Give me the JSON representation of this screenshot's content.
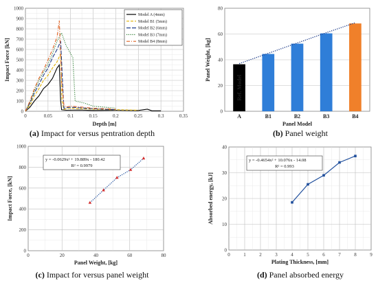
{
  "chart_data": [
    {
      "type": "line",
      "caption_letter": "(a)",
      "caption_text": " Impact for versus pentration depth",
      "xlabel": "Depth [m]",
      "ylabel": "Impact Force [kN]",
      "xlim": [
        0,
        0.35
      ],
      "ylim": [
        0,
        1000
      ],
      "xticks": [
        "0",
        "0.05",
        "0.1",
        "0.15",
        "0.2",
        "0.25",
        "0.3",
        "0.35"
      ],
      "yticks": [
        "0",
        "100",
        "200",
        "300",
        "400",
        "500",
        "600",
        "700",
        "800",
        "900",
        "1000"
      ],
      "grid": true,
      "legend_position": "top-right",
      "series": [
        {
          "name": "Model A (4mm)",
          "color": "#000000",
          "dash": "solid",
          "x": [
            0,
            0.01,
            0.02,
            0.03,
            0.04,
            0.05,
            0.06,
            0.07,
            0.075,
            0.078,
            0.08,
            0.09,
            0.12,
            0.15,
            0.2,
            0.25,
            0.27,
            0.28,
            0.3
          ],
          "y": [
            0,
            40,
            100,
            150,
            220,
            260,
            320,
            420,
            450,
            100,
            15,
            10,
            12,
            8,
            10,
            8,
            20,
            5,
            5
          ]
        },
        {
          "name": "Model B1 (5mm)",
          "color": "#e0b000",
          "dash": "dash",
          "x": [
            0,
            0.01,
            0.02,
            0.03,
            0.04,
            0.05,
            0.06,
            0.07,
            0.078,
            0.081,
            0.085,
            0.1,
            0.15,
            0.2,
            0.25
          ],
          "y": [
            0,
            60,
            150,
            220,
            300,
            350,
            420,
            480,
            560,
            100,
            20,
            30,
            20,
            15,
            10
          ]
        },
        {
          "name": "Model B2 (6mm)",
          "color": "#1f3d8a",
          "dash": "longdash",
          "x": [
            0,
            0.01,
            0.02,
            0.03,
            0.04,
            0.05,
            0.06,
            0.07,
            0.078,
            0.082,
            0.085,
            0.1,
            0.15,
            0.2
          ],
          "y": [
            0,
            80,
            180,
            260,
            350,
            420,
            520,
            600,
            680,
            300,
            30,
            40,
            25,
            15
          ]
        },
        {
          "name": "Model B3 (7mm)",
          "color": "#2e7d32",
          "dash": "dot",
          "x": [
            0,
            0.01,
            0.02,
            0.03,
            0.04,
            0.05,
            0.06,
            0.07,
            0.08,
            0.09,
            0.1,
            0.105,
            0.11,
            0.13,
            0.15,
            0.2
          ],
          "y": [
            0,
            90,
            200,
            300,
            380,
            460,
            560,
            680,
            760,
            640,
            560,
            520,
            100,
            80,
            50,
            30
          ]
        },
        {
          "name": "Model B4 (8mm)",
          "color": "#e06020",
          "dash": "dashdot",
          "x": [
            0,
            0.01,
            0.02,
            0.03,
            0.04,
            0.05,
            0.06,
            0.07,
            0.075,
            0.08,
            0.085,
            0.09,
            0.1,
            0.15,
            0.2
          ],
          "y": [
            0,
            100,
            220,
            320,
            400,
            500,
            600,
            720,
            880,
            300,
            60,
            40,
            50,
            30,
            20
          ]
        }
      ]
    },
    {
      "type": "bar",
      "caption_letter": "(b)",
      "caption_text": " Panel weight",
      "xlabel": "Panel Model",
      "ylabel": "Panel Weight, [kg]",
      "ylim": [
        0,
        80
      ],
      "yticks": [
        "0",
        "20",
        "40",
        "60",
        "80"
      ],
      "categories": [
        "A",
        "B1",
        "B2",
        "B3",
        "B4"
      ],
      "values": [
        36.5,
        44.5,
        52.5,
        60.5,
        68.2
      ],
      "bar_colors": [
        "#000000",
        "#2f7ed8",
        "#2f7ed8",
        "#2f7ed8",
        "#f0802a"
      ],
      "bar_annotation": "Ref. Model",
      "trendline": "dotted",
      "grid": true
    },
    {
      "type": "scatter",
      "caption_letter": "(c)",
      "caption_text": " Impact for versus panel weight",
      "xlabel": "Panel Weight, [kg]",
      "ylabel": "Impact Force, [kN]",
      "xlim": [
        0,
        80
      ],
      "ylim": [
        0,
        1000
      ],
      "xticks": [
        "0",
        "20",
        "40",
        "60",
        "80"
      ],
      "yticks": [
        "0",
        "200",
        "400",
        "600",
        "800",
        "1000"
      ],
      "x": [
        36.5,
        44.5,
        52.5,
        60.5,
        68.2
      ],
      "y": [
        460,
        580,
        700,
        775,
        885
      ],
      "marker_color": "#d32f2f",
      "trendline_color": "#1f4e9c",
      "equation": "y = -0.0629x² + 19.889x - 180.42",
      "r2": "R² = 0.9979",
      "grid": true
    },
    {
      "type": "scatter",
      "caption_letter": "(d)",
      "caption_text": " Panel absorbed energy",
      "xlabel": "Plating Thickness, [mm]",
      "ylabel": "Absorbed energy, [kJ]",
      "xlim": [
        0,
        9
      ],
      "ylim": [
        0,
        40
      ],
      "xticks": [
        "0",
        "1",
        "2",
        "3",
        "4",
        "5",
        "6",
        "7",
        "8",
        "9"
      ],
      "yticks": [
        "0",
        "10",
        "20",
        "30",
        "40"
      ],
      "x": [
        4,
        5,
        6,
        7,
        8
      ],
      "y": [
        18.5,
        25.5,
        29,
        34,
        36.5
      ],
      "marker_color": "#1f4e9c",
      "trendline_color": "#1f4e9c",
      "equation": "y = -0.4654x² + 10.076x - 14.08",
      "r2": "R² = 0.993",
      "grid": true
    }
  ]
}
